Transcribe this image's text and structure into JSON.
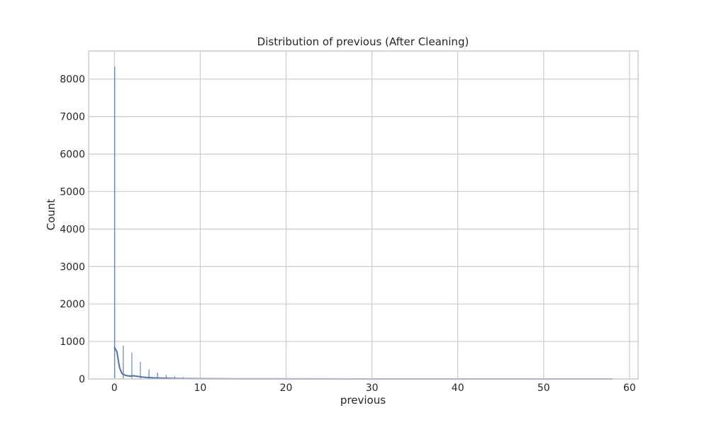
{
  "chart_data": {
    "type": "histogram",
    "title": "Distribution of previous (After Cleaning)",
    "xlabel": "previous",
    "ylabel": "Count",
    "xlim": [
      -3,
      61
    ],
    "ylim": [
      0,
      8750
    ],
    "xticks": [
      0,
      10,
      20,
      30,
      40,
      50,
      60
    ],
    "yticks": [
      0,
      1000,
      2000,
      3000,
      4000,
      5000,
      6000,
      7000,
      8000
    ],
    "grid": true,
    "bin_width": 0.058,
    "bars": [
      {
        "x": 0,
        "count": 8330
      },
      {
        "x": 1,
        "count": 880
      },
      {
        "x": 2,
        "count": 700
      },
      {
        "x": 3,
        "count": 450
      },
      {
        "x": 4,
        "count": 250
      },
      {
        "x": 5,
        "count": 160
      },
      {
        "x": 6,
        "count": 100
      },
      {
        "x": 7,
        "count": 65
      },
      {
        "x": 8,
        "count": 45
      },
      {
        "x": 9,
        "count": 25
      },
      {
        "x": 10,
        "count": 18
      },
      {
        "x": 11,
        "count": 12
      },
      {
        "x": 12,
        "count": 8
      },
      {
        "x": 13,
        "count": 6
      },
      {
        "x": 14,
        "count": 4
      },
      {
        "x": 15,
        "count": 3
      }
    ],
    "kde": {
      "x": [
        0,
        0.3,
        0.6,
        0.9,
        1.3,
        1.8,
        2.2,
        2.8,
        3.5,
        4.5,
        6,
        8,
        10,
        15,
        20,
        30,
        40,
        50,
        58
      ],
      "y": [
        850,
        720,
        300,
        140,
        95,
        75,
        85,
        65,
        45,
        30,
        18,
        10,
        6,
        3,
        2,
        1,
        1,
        0,
        0
      ]
    },
    "colors": {
      "bar": "#4c72b0",
      "kde": "#4c72b0",
      "grid": "#cccccc",
      "spine": "#cccccc",
      "text": "#262626"
    }
  }
}
